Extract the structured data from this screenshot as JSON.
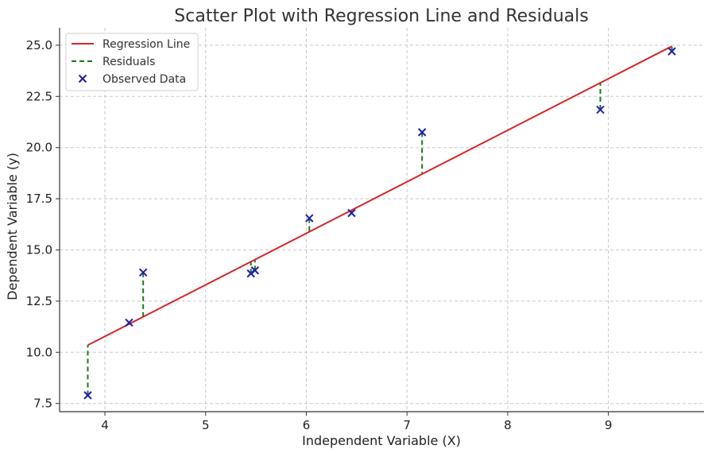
{
  "chart_data": {
    "type": "scatter",
    "title": "Scatter Plot with Regression Line and Residuals",
    "xlabel": "Independent Variable (X)",
    "ylabel": "Dependent Variable (y)",
    "xlim": [
      3.55,
      9.95
    ],
    "ylim": [
      7.1,
      25.85
    ],
    "xticks": [
      4,
      5,
      6,
      7,
      8,
      9
    ],
    "xtick_labels": [
      "4",
      "5",
      "6",
      "7",
      "8",
      "9"
    ],
    "yticks": [
      7.5,
      10.0,
      12.5,
      15.0,
      17.5,
      20.0,
      22.5,
      25.0
    ],
    "ytick_labels": [
      "7.5",
      "10.0",
      "12.5",
      "15.0",
      "17.5",
      "20.0",
      "22.5",
      "25.0"
    ],
    "grid": true,
    "legend_position": "top-left",
    "legend": {
      "regression": "Regression Line",
      "residuals": "Residuals",
      "observed": "Observed Data"
    },
    "colors": {
      "regression": "#d62728",
      "residuals": "#1a7a1a",
      "observed": "#1f1fa8"
    },
    "regression_line": {
      "x": [
        3.83,
        9.63
      ],
      "y": [
        10.35,
        24.95
      ]
    },
    "observed": [
      {
        "x": 3.83,
        "y": 7.9
      },
      {
        "x": 4.24,
        "y": 11.45
      },
      {
        "x": 4.38,
        "y": 13.9
      },
      {
        "x": 5.45,
        "y": 13.85
      },
      {
        "x": 5.49,
        "y": 14.0
      },
      {
        "x": 6.03,
        "y": 16.55
      },
      {
        "x": 6.45,
        "y": 16.8
      },
      {
        "x": 7.15,
        "y": 20.75
      },
      {
        "x": 8.92,
        "y": 21.85
      },
      {
        "x": 9.63,
        "y": 24.7
      }
    ]
  }
}
